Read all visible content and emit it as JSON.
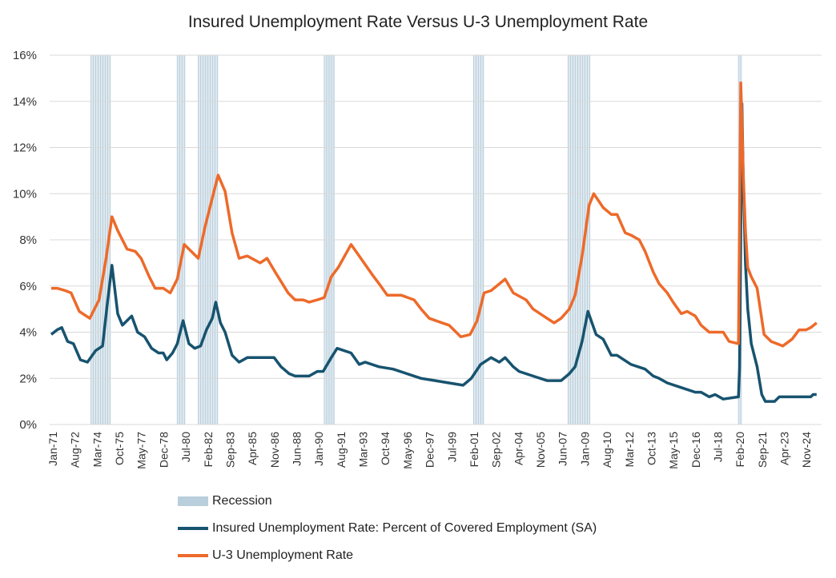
{
  "chart_data": {
    "type": "line",
    "title": "Insured Unemployment Rate Versus U-3 Unemployment Rate",
    "xlabel": "",
    "ylabel": "",
    "ylim": [
      0,
      16
    ],
    "y_ticks": [
      "0%",
      "2%",
      "4%",
      "6%",
      "8%",
      "10%",
      "12%",
      "14%",
      "16%"
    ],
    "x_tick_labels": [
      "Jan-71",
      "Aug-72",
      "Mar-74",
      "Oct-75",
      "May-77",
      "Dec-78",
      "Jul-80",
      "Feb-82",
      "Sep-83",
      "Apr-85",
      "Nov-86",
      "Jun-88",
      "Jan-90",
      "Aug-91",
      "Mar-93",
      "Oct-94",
      "May-96",
      "Dec-97",
      "Jul-99",
      "Feb-01",
      "Sep-02",
      "Apr-04",
      "Nov-05",
      "Jun-07",
      "Jan-09",
      "Aug-10",
      "Mar-12",
      "Oct-13",
      "May-15",
      "Dec-16",
      "Jul-18",
      "Feb-20",
      "Sep-21",
      "Apr-23",
      "Nov-24"
    ],
    "grid": true,
    "legend_position": "bottom",
    "recessions": {
      "name": "Recession",
      "color": "#b9cfdc",
      "periods": [
        [
          "1973-11",
          "1975-03"
        ],
        [
          "1980-01",
          "1980-07"
        ],
        [
          "1981-07",
          "1982-11"
        ],
        [
          "1990-07",
          "1991-03"
        ],
        [
          "2001-03",
          "2001-11"
        ],
        [
          "2007-12",
          "2009-06"
        ],
        [
          "2020-02",
          "2020-04"
        ]
      ]
    },
    "series": [
      {
        "name": "Insured Unemployment Rate: Percent of Covered Employment (SA)",
        "color": "#17536f",
        "points": [
          [
            "1971-01",
            3.9
          ],
          [
            "1971-06",
            4.1
          ],
          [
            "1971-10",
            4.2
          ],
          [
            "1972-03",
            3.6
          ],
          [
            "1972-08",
            3.5
          ],
          [
            "1973-02",
            2.8
          ],
          [
            "1973-08",
            2.7
          ],
          [
            "1974-03",
            3.2
          ],
          [
            "1974-09",
            3.4
          ],
          [
            "1975-01",
            5.2
          ],
          [
            "1975-05",
            6.9
          ],
          [
            "1975-10",
            4.8
          ],
          [
            "1976-02",
            4.3
          ],
          [
            "1976-10",
            4.7
          ],
          [
            "1977-03",
            4.0
          ],
          [
            "1977-09",
            3.8
          ],
          [
            "1978-03",
            3.3
          ],
          [
            "1978-09",
            3.1
          ],
          [
            "1979-01",
            3.1
          ],
          [
            "1979-04",
            2.8
          ],
          [
            "1979-09",
            3.1
          ],
          [
            "1980-01",
            3.5
          ],
          [
            "1980-06",
            4.5
          ],
          [
            "1980-11",
            3.5
          ],
          [
            "1981-04",
            3.3
          ],
          [
            "1981-09",
            3.4
          ],
          [
            "1982-02",
            4.1
          ],
          [
            "1982-07",
            4.6
          ],
          [
            "1982-10",
            5.3
          ],
          [
            "1983-02",
            4.4
          ],
          [
            "1983-06",
            4.0
          ],
          [
            "1983-12",
            3.0
          ],
          [
            "1984-06",
            2.7
          ],
          [
            "1985-01",
            2.9
          ],
          [
            "1986-06",
            2.9
          ],
          [
            "1986-12",
            2.9
          ],
          [
            "1987-06",
            2.5
          ],
          [
            "1988-01",
            2.2
          ],
          [
            "1988-06",
            2.1
          ],
          [
            "1989-06",
            2.1
          ],
          [
            "1990-01",
            2.3
          ],
          [
            "1990-06",
            2.3
          ],
          [
            "1991-01",
            2.9
          ],
          [
            "1991-06",
            3.3
          ],
          [
            "1992-06",
            3.1
          ],
          [
            "1993-01",
            2.6
          ],
          [
            "1993-06",
            2.7
          ],
          [
            "1994-06",
            2.5
          ],
          [
            "1995-06",
            2.4
          ],
          [
            "1996-06",
            2.2
          ],
          [
            "1997-06",
            2.0
          ],
          [
            "1998-06",
            1.9
          ],
          [
            "1999-06",
            1.8
          ],
          [
            "2000-06",
            1.7
          ],
          [
            "2001-01",
            2.0
          ],
          [
            "2001-09",
            2.6
          ],
          [
            "2002-06",
            2.9
          ],
          [
            "2003-01",
            2.7
          ],
          [
            "2003-06",
            2.9
          ],
          [
            "2004-01",
            2.5
          ],
          [
            "2004-06",
            2.3
          ],
          [
            "2005-06",
            2.1
          ],
          [
            "2006-06",
            1.9
          ],
          [
            "2007-06",
            1.9
          ],
          [
            "2008-01",
            2.2
          ],
          [
            "2008-06",
            2.5
          ],
          [
            "2008-12",
            3.6
          ],
          [
            "2009-05",
            4.9
          ],
          [
            "2009-12",
            3.9
          ],
          [
            "2010-06",
            3.7
          ],
          [
            "2011-01",
            3.0
          ],
          [
            "2011-06",
            3.0
          ],
          [
            "2012-06",
            2.6
          ],
          [
            "2013-06",
            2.4
          ],
          [
            "2014-01",
            2.1
          ],
          [
            "2014-06",
            2.0
          ],
          [
            "2015-01",
            1.8
          ],
          [
            "2016-01",
            1.6
          ],
          [
            "2017-01",
            1.4
          ],
          [
            "2017-06",
            1.4
          ],
          [
            "2018-01",
            1.2
          ],
          [
            "2018-06",
            1.3
          ],
          [
            "2019-01",
            1.1
          ],
          [
            "2020-02",
            1.2
          ],
          [
            "2020-03",
            2.5
          ],
          [
            "2020-05",
            13.9
          ],
          [
            "2020-06",
            11.0
          ],
          [
            "2020-08",
            7.0
          ],
          [
            "2020-10",
            5.0
          ],
          [
            "2021-01",
            3.5
          ],
          [
            "2021-06",
            2.5
          ],
          [
            "2021-10",
            1.3
          ],
          [
            "2022-01",
            1.0
          ],
          [
            "2022-09",
            1.0
          ],
          [
            "2023-01",
            1.2
          ],
          [
            "2025-04",
            1.2
          ],
          [
            "2025-06",
            1.3
          ],
          [
            "2025-09",
            1.3
          ]
        ]
      },
      {
        "name": "U-3 Unemployment Rate",
        "color": "#ed6a2a",
        "points": [
          [
            "1971-01",
            5.9
          ],
          [
            "1971-06",
            5.9
          ],
          [
            "1972-01",
            5.8
          ],
          [
            "1972-06",
            5.7
          ],
          [
            "1973-01",
            4.9
          ],
          [
            "1973-10",
            4.6
          ],
          [
            "1974-06",
            5.4
          ],
          [
            "1974-12",
            7.2
          ],
          [
            "1975-05",
            9.0
          ],
          [
            "1975-10",
            8.4
          ],
          [
            "1976-06",
            7.6
          ],
          [
            "1977-01",
            7.5
          ],
          [
            "1977-06",
            7.2
          ],
          [
            "1978-01",
            6.4
          ],
          [
            "1978-06",
            5.9
          ],
          [
            "1979-01",
            5.9
          ],
          [
            "1979-07",
            5.7
          ],
          [
            "1980-01",
            6.3
          ],
          [
            "1980-07",
            7.8
          ],
          [
            "1981-01",
            7.5
          ],
          [
            "1981-07",
            7.2
          ],
          [
            "1982-01",
            8.6
          ],
          [
            "1982-06",
            9.6
          ],
          [
            "1982-12",
            10.8
          ],
          [
            "1983-06",
            10.1
          ],
          [
            "1983-12",
            8.3
          ],
          [
            "1984-06",
            7.2
          ],
          [
            "1985-01",
            7.3
          ],
          [
            "1985-12",
            7.0
          ],
          [
            "1986-06",
            7.2
          ],
          [
            "1987-01",
            6.6
          ],
          [
            "1987-12",
            5.7
          ],
          [
            "1988-06",
            5.4
          ],
          [
            "1989-01",
            5.4
          ],
          [
            "1989-06",
            5.3
          ],
          [
            "1990-01",
            5.4
          ],
          [
            "1990-07",
            5.5
          ],
          [
            "1991-01",
            6.4
          ],
          [
            "1991-07",
            6.8
          ],
          [
            "1992-06",
            7.8
          ],
          [
            "1993-01",
            7.3
          ],
          [
            "1993-12",
            6.5
          ],
          [
            "1994-06",
            6.1
          ],
          [
            "1995-01",
            5.6
          ],
          [
            "1996-01",
            5.6
          ],
          [
            "1996-12",
            5.4
          ],
          [
            "1997-06",
            5.0
          ],
          [
            "1998-01",
            4.6
          ],
          [
            "1998-12",
            4.4
          ],
          [
            "1999-06",
            4.3
          ],
          [
            "2000-04",
            3.8
          ],
          [
            "2000-12",
            3.9
          ],
          [
            "2001-06",
            4.5
          ],
          [
            "2001-12",
            5.7
          ],
          [
            "2002-06",
            5.8
          ],
          [
            "2003-06",
            6.3
          ],
          [
            "2004-01",
            5.7
          ],
          [
            "2004-12",
            5.4
          ],
          [
            "2005-06",
            5.0
          ],
          [
            "2006-06",
            4.6
          ],
          [
            "2006-12",
            4.4
          ],
          [
            "2007-06",
            4.6
          ],
          [
            "2008-01",
            5.0
          ],
          [
            "2008-06",
            5.6
          ],
          [
            "2008-12",
            7.3
          ],
          [
            "2009-06",
            9.5
          ],
          [
            "2009-10",
            10.0
          ],
          [
            "2010-06",
            9.4
          ],
          [
            "2011-01",
            9.1
          ],
          [
            "2011-06",
            9.1
          ],
          [
            "2012-01",
            8.3
          ],
          [
            "2012-06",
            8.2
          ],
          [
            "2013-01",
            8.0
          ],
          [
            "2013-06",
            7.5
          ],
          [
            "2014-01",
            6.6
          ],
          [
            "2014-06",
            6.1
          ],
          [
            "2015-01",
            5.7
          ],
          [
            "2015-06",
            5.3
          ],
          [
            "2016-01",
            4.8
          ],
          [
            "2016-06",
            4.9
          ],
          [
            "2017-01",
            4.7
          ],
          [
            "2017-06",
            4.3
          ],
          [
            "2018-01",
            4.0
          ],
          [
            "2018-06",
            4.0
          ],
          [
            "2019-01",
            4.0
          ],
          [
            "2019-06",
            3.6
          ],
          [
            "2020-02",
            3.5
          ],
          [
            "2020-04",
            14.8
          ],
          [
            "2020-05",
            13.2
          ],
          [
            "2020-06",
            11.0
          ],
          [
            "2020-08",
            8.4
          ],
          [
            "2020-10",
            6.8
          ],
          [
            "2021-01",
            6.4
          ],
          [
            "2021-06",
            5.9
          ],
          [
            "2021-12",
            3.9
          ],
          [
            "2022-06",
            3.6
          ],
          [
            "2023-04",
            3.4
          ],
          [
            "2023-12",
            3.7
          ],
          [
            "2024-06",
            4.1
          ],
          [
            "2024-12",
            4.1
          ],
          [
            "2025-04",
            4.2
          ],
          [
            "2025-09",
            4.4
          ]
        ]
      }
    ]
  }
}
